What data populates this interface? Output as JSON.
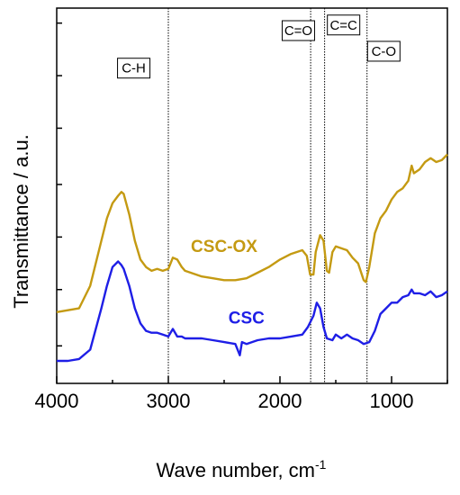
{
  "chart_data": {
    "type": "line",
    "title": "",
    "xlabel": "Wave number, cm",
    "xlabel_sup": "-1",
    "ylabel": "Transmittance / a.u.",
    "xlim": [
      4000,
      500
    ],
    "x_reversed": true,
    "ylim": [
      0,
      100
    ],
    "y_tick_labels_shown": false,
    "x_ticks": [
      {
        "value": 4000,
        "label": "4000"
      },
      {
        "value": 3000,
        "label": "3000"
      },
      {
        "value": 2000,
        "label": "2000"
      },
      {
        "value": 1000,
        "label": "1000"
      }
    ],
    "x_minor_ticks": [
      3500,
      2500,
      1500,
      500
    ],
    "y_ticks": [
      10,
      25,
      39,
      53,
      68,
      82,
      96
    ],
    "grid": false,
    "series": [
      {
        "name": "CSC-OX",
        "color": "#C49A12",
        "x": [
          4000,
          3900,
          3800,
          3700,
          3600,
          3550,
          3500,
          3450,
          3420,
          3400,
          3350,
          3300,
          3250,
          3200,
          3150,
          3100,
          3050,
          3000,
          2960,
          2920,
          2880,
          2850,
          2800,
          2700,
          2600,
          2500,
          2400,
          2300,
          2200,
          2100,
          2000,
          1900,
          1800,
          1760,
          1730,
          1700,
          1680,
          1640,
          1610,
          1580,
          1560,
          1530,
          1500,
          1450,
          1400,
          1350,
          1300,
          1250,
          1230,
          1200,
          1150,
          1100,
          1050,
          1000,
          950,
          900,
          850,
          820,
          800,
          750,
          700,
          650,
          600,
          550,
          500
        ],
        "y": [
          19,
          19.5,
          20,
          26,
          38,
          44,
          48,
          50,
          51,
          50.5,
          45,
          38,
          33,
          31,
          30,
          30.5,
          30,
          30.5,
          33.5,
          33,
          31,
          30,
          29.5,
          28.5,
          28,
          27.5,
          27.5,
          28,
          29.5,
          31,
          33,
          34.5,
          35.5,
          34,
          29,
          29,
          35,
          39.5,
          38,
          30,
          29.5,
          35,
          36.5,
          36,
          35.5,
          33.5,
          32,
          27.5,
          27,
          31,
          40,
          44,
          46,
          49,
          51,
          52,
          54,
          58,
          56,
          57,
          59,
          60,
          59,
          59.5,
          61
        ]
      },
      {
        "name": "CSC",
        "color": "#1E1EE6",
        "x": [
          4000,
          3900,
          3800,
          3700,
          3600,
          3550,
          3500,
          3450,
          3420,
          3400,
          3350,
          3300,
          3250,
          3200,
          3150,
          3100,
          3050,
          3000,
          2960,
          2920,
          2880,
          2850,
          2800,
          2700,
          2600,
          2500,
          2400,
          2360,
          2340,
          2300,
          2200,
          2100,
          2000,
          1900,
          1800,
          1750,
          1700,
          1670,
          1640,
          1610,
          1580,
          1530,
          1500,
          1450,
          1400,
          1350,
          1300,
          1250,
          1200,
          1150,
          1100,
          1050,
          1000,
          950,
          900,
          850,
          820,
          800,
          750,
          700,
          650,
          600,
          550,
          500
        ],
        "y": [
          6,
          6,
          6.5,
          9,
          20,
          26,
          31,
          32.5,
          31.5,
          30.5,
          26,
          20,
          16,
          14,
          13.5,
          13.5,
          13,
          12.5,
          14.5,
          12.5,
          12.5,
          12,
          12,
          12,
          11.5,
          11,
          10.5,
          7.5,
          11,
          10.5,
          11.5,
          12,
          12,
          12.5,
          13,
          15,
          18,
          21.5,
          20,
          15,
          12,
          11.5,
          13,
          12,
          13,
          12,
          11.5,
          10.5,
          11,
          14,
          18.5,
          20,
          21.5,
          21.5,
          23,
          23.5,
          25,
          24,
          24,
          23.5,
          24.5,
          23,
          23.5,
          24.5
        ]
      }
    ],
    "series_labels": [
      {
        "text": "CSC-OX",
        "series": "CSC-OX",
        "x": 2500,
        "y": 35
      },
      {
        "text": "CSC",
        "series": "CSC",
        "x": 2300,
        "y": 16
      }
    ],
    "reference_lines": [
      {
        "x": 3000,
        "label": "C-H",
        "label_x": 3310,
        "label_y": 84
      },
      {
        "x": 1725,
        "label": "C=O",
        "label_x": 1835,
        "label_y": 94
      },
      {
        "x": 1600,
        "label": "C=C",
        "label_x": 1430,
        "label_y": 95.5
      },
      {
        "x": 1220,
        "label": "C-O",
        "label_x": 1070,
        "label_y": 88.5
      }
    ]
  }
}
